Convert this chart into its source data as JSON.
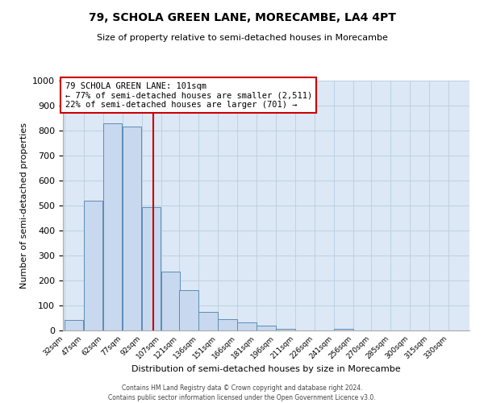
{
  "title": "79, SCHOLA GREEN LANE, MORECAMBE, LA4 4PT",
  "subtitle": "Size of property relative to semi-detached houses in Morecambe",
  "xlabel": "Distribution of semi-detached houses by size in Morecambe",
  "ylabel": "Number of semi-detached properties",
  "bin_labels": [
    "32sqm",
    "47sqm",
    "62sqm",
    "77sqm",
    "92sqm",
    "107sqm",
    "121sqm",
    "136sqm",
    "151sqm",
    "166sqm",
    "181sqm",
    "196sqm",
    "211sqm",
    "226sqm",
    "241sqm",
    "256sqm",
    "270sqm",
    "285sqm",
    "300sqm",
    "315sqm",
    "330sqm"
  ],
  "bin_left": [
    32,
    47,
    62,
    77,
    92,
    107,
    121,
    136,
    151,
    166,
    181,
    196,
    211,
    226,
    241,
    256,
    270,
    285,
    300,
    315,
    330
  ],
  "bin_width": 15,
  "bar_heights": [
    43,
    520,
    830,
    815,
    493,
    235,
    162,
    75,
    46,
    33,
    18,
    5,
    0,
    0,
    5,
    0,
    0,
    0,
    0,
    0
  ],
  "bar_color": "#c8d8ee",
  "bar_edge_color": "#5b8db8",
  "property_size": 101,
  "vline_color": "#cc0000",
  "annotation_line1": "79 SCHOLA GREEN LANE: 101sqm",
  "annotation_line2": "← 77% of semi-detached houses are smaller (2,511)",
  "annotation_line3": "22% of semi-detached houses are larger (701) →",
  "annotation_box_color": "#ffffff",
  "annotation_box_edge": "#cc0000",
  "ylim": [
    0,
    1000
  ],
  "yticks": [
    0,
    100,
    200,
    300,
    400,
    500,
    600,
    700,
    800,
    900,
    1000
  ],
  "plot_bg_color": "#dce8f5",
  "background_color": "#ffffff",
  "grid_color": "#b8cde0",
  "footer1": "Contains HM Land Registry data © Crown copyright and database right 2024.",
  "footer2": "Contains public sector information licensed under the Open Government Licence v3.0."
}
